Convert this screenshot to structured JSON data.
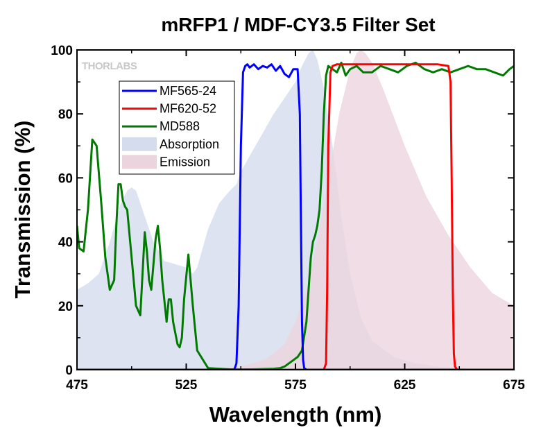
{
  "chart_data": {
    "type": "line",
    "title": "mRFP1 / MDF-CY3.5 Filter Set",
    "xlabel": "Wavelength (nm)",
    "ylabel": "Transmission (%)",
    "xlim": [
      475,
      675
    ],
    "ylim": [
      0,
      100
    ],
    "xticks": [
      475,
      525,
      575,
      625,
      675
    ],
    "xtick_labels": [
      "475",
      "525",
      "575",
      "625",
      "675"
    ],
    "yticks": [
      0,
      20,
      40,
      60,
      80,
      100
    ],
    "ytick_labels": [
      "0",
      "20",
      "40",
      "60",
      "80",
      "100"
    ],
    "legend_position": "upper-left",
    "watermark": "THORLABS",
    "series": [
      {
        "name": "MF565-24",
        "kind": "line",
        "color": "#0000ff",
        "x": [
          475,
          547,
          548,
          549,
          550,
          551,
          552,
          553,
          554,
          556,
          558,
          560,
          562,
          564,
          566,
          568,
          570,
          572,
          574,
          576,
          577,
          577.5,
          578,
          578.5,
          579,
          580,
          675
        ],
        "y": [
          0,
          0,
          2,
          20,
          70,
          93,
          95,
          95.5,
          94.5,
          95.5,
          94,
          95,
          94.5,
          95.5,
          93.5,
          95,
          92.5,
          91.5,
          94,
          94,
          80,
          45,
          15,
          3,
          0.5,
          0,
          0
        ]
      },
      {
        "name": "MF620-52",
        "kind": "line",
        "color": "#ff0000",
        "x": [
          475,
          588,
          589,
          589.5,
          590,
          591,
          592,
          594,
          600,
          610,
          620,
          630,
          640,
          645,
          646,
          646.5,
          647,
          647.5,
          648,
          649,
          675
        ],
        "y": [
          0,
          0,
          2,
          25,
          70,
          93,
          95,
          95.5,
          95.5,
          95.5,
          95.5,
          95.5,
          95.5,
          95,
          90,
          60,
          25,
          5,
          1,
          0,
          0
        ]
      },
      {
        "name": "MD588",
        "kind": "line",
        "color": "#007a00",
        "x": [
          475,
          476,
          478,
          480,
          482,
          484,
          486,
          488,
          490,
          492,
          493,
          494,
          495,
          496,
          497,
          498,
          500,
          502,
          504,
          505,
          506,
          507,
          508,
          509,
          511,
          512,
          513,
          514,
          516,
          517,
          518,
          519,
          521,
          522,
          523,
          524,
          526,
          528,
          530,
          535,
          545,
          555,
          565,
          568,
          570,
          572,
          574,
          576,
          578,
          580,
          581,
          582,
          583,
          584,
          585,
          586,
          587,
          588,
          589,
          590,
          592,
          594,
          596,
          598,
          600,
          603,
          606,
          610,
          614,
          618,
          622,
          626,
          630,
          634,
          638,
          642,
          646,
          650,
          654,
          658,
          662,
          666,
          670,
          673,
          675
        ],
        "y": [
          45,
          38,
          37,
          50,
          72,
          70,
          53,
          35,
          25,
          28,
          45,
          58,
          58,
          53,
          51,
          50,
          35,
          20,
          17,
          30,
          43,
          37,
          28,
          25,
          41,
          45,
          38,
          28,
          15,
          22,
          22,
          15,
          8,
          7,
          10,
          22,
          36,
          20,
          6,
          0.5,
          0.1,
          0.1,
          0.3,
          0.5,
          1,
          2,
          3,
          4,
          6,
          15,
          25,
          35,
          40,
          42,
          45,
          50,
          62,
          80,
          92,
          95,
          94,
          93,
          96,
          92,
          94,
          95,
          93,
          93,
          95,
          94,
          93,
          95,
          96,
          94,
          93,
          94,
          93,
          94,
          95,
          94,
          94,
          93,
          92,
          94,
          95
        ]
      },
      {
        "name": "Absorption",
        "kind": "area",
        "color": "#d4dcee",
        "x": [
          475,
          480,
          485,
          490,
          495,
          498,
          500,
          502,
          505,
          510,
          515,
          520,
          525,
          528,
          530,
          535,
          540,
          545,
          548,
          550,
          555,
          560,
          565,
          570,
          575,
          578,
          581,
          583,
          585,
          588,
          592,
          596,
          600,
          605,
          610,
          620,
          630,
          640,
          650,
          660,
          662
        ],
        "y": [
          25,
          27,
          30,
          40,
          52,
          56,
          57,
          56,
          50,
          40,
          34,
          33,
          32,
          30,
          32,
          44,
          52,
          56,
          58,
          62,
          68,
          74,
          80,
          85,
          90,
          95,
          99,
          100,
          97,
          88,
          70,
          48,
          30,
          16,
          9,
          4,
          2,
          1,
          0.5,
          0.2,
          0
        ]
      },
      {
        "name": "Emission",
        "kind": "area",
        "color": "#ecd4de",
        "x": [
          522,
          530,
          540,
          550,
          555,
          560,
          565,
          570,
          575,
          580,
          585,
          590,
          595,
          600,
          603,
          605,
          607,
          610,
          615,
          620,
          625,
          630,
          635,
          640,
          645,
          650,
          655,
          660,
          665,
          670,
          675
        ],
        "y": [
          0,
          0.2,
          0.5,
          1,
          2,
          3,
          5,
          8,
          15,
          25,
          40,
          60,
          80,
          94,
          99,
          100,
          99,
          96,
          88,
          79,
          70,
          62,
          54,
          48,
          42,
          37,
          32,
          28,
          24,
          22,
          20
        ]
      }
    ]
  }
}
